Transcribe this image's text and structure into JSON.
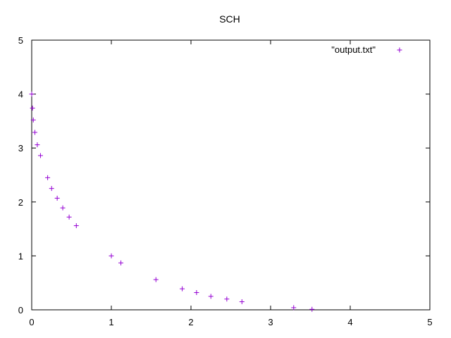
{
  "chart_data": {
    "type": "scatter",
    "title": "SCH",
    "xlabel": "",
    "ylabel": "",
    "xlim": [
      0,
      5
    ],
    "ylim": [
      0,
      5
    ],
    "x_ticks": [
      0,
      1,
      2,
      3,
      4,
      5
    ],
    "y_ticks": [
      0,
      1,
      2,
      3,
      4,
      5
    ],
    "x_tick_labels": [
      "0",
      "1",
      "2",
      "3",
      "4",
      "5"
    ],
    "y_tick_labels": [
      "0",
      "1",
      "2",
      "3",
      "4",
      "5"
    ],
    "grid": false,
    "legend_position": "top-right",
    "marker": "plus",
    "series": [
      {
        "name": "\"output.txt\"",
        "color": "#9400d3",
        "points": [
          [
            0.0,
            4.0
          ],
          [
            0.01,
            3.74
          ],
          [
            0.02,
            3.52
          ],
          [
            0.04,
            3.29
          ],
          [
            0.07,
            3.06
          ],
          [
            0.11,
            2.86
          ],
          [
            0.2,
            2.45
          ],
          [
            0.25,
            2.25
          ],
          [
            0.32,
            2.07
          ],
          [
            0.39,
            1.89
          ],
          [
            0.47,
            1.72
          ],
          [
            0.56,
            1.56
          ],
          [
            1.0,
            1.0
          ],
          [
            1.12,
            0.87
          ],
          [
            1.56,
            0.56
          ],
          [
            1.89,
            0.39
          ],
          [
            2.07,
            0.32
          ],
          [
            2.25,
            0.25
          ],
          [
            2.45,
            0.2
          ],
          [
            2.64,
            0.15
          ],
          [
            3.29,
            0.04
          ],
          [
            3.52,
            0.01
          ]
        ]
      }
    ]
  }
}
